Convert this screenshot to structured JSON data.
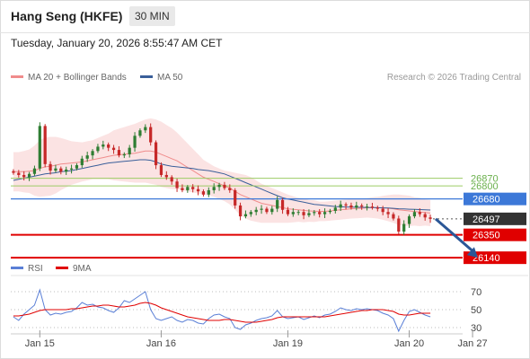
{
  "header": {
    "title": "Hang Seng (HKFE)",
    "interval": "30 MIN",
    "datetime": "Tuesday, January 20, 2026 8:55:47 AM CET",
    "credit": "Research © 2026 Trading Central"
  },
  "legend": {
    "bollinger_label": "MA 20 + Bollinger Bands",
    "bollinger_color": "#f08c8c",
    "ma50_label": "MA 50",
    "ma50_color": "#3a5f9a",
    "rsi_label": "RSI",
    "rsi_color": "#5a7fd6",
    "ma9_label": "9MA",
    "ma9_color": "#e00000"
  },
  "chart_data": [
    {
      "type": "candlestick",
      "ylim": [
        26100,
        27650
      ],
      "x_ticks": [
        "Jan 15",
        "Jan 16",
        "Jan 19",
        "Jan 20",
        "Jan 27"
      ],
      "x_tick_index": [
        5,
        28,
        52,
        75,
        87
      ],
      "n_bars": 80,
      "last_price": 26497,
      "levels": [
        {
          "value": 26870,
          "label": "26870",
          "kind": "resistance-green",
          "color": "#9ccc65"
        },
        {
          "value": 26800,
          "label": "26800",
          "kind": "resistance-green",
          "color": "#9ccc65"
        },
        {
          "value": 26680,
          "label": "26680",
          "kind": "pivot",
          "color": "#3c78d8"
        },
        {
          "value": 26497,
          "label": "26497",
          "kind": "last",
          "color": "#333333"
        },
        {
          "value": 26350,
          "label": "26350",
          "kind": "support",
          "color": "#e00000"
        },
        {
          "value": 26140,
          "label": "26140",
          "kind": "support",
          "color": "#e00000"
        }
      ],
      "forecast_arrow": {
        "from_index": 80,
        "from": 26497,
        "to_index": 88,
        "to": 26140,
        "color": "#2b5797"
      },
      "close": [
        26920,
        26900,
        26880,
        26910,
        26960,
        27350,
        27000,
        26940,
        26960,
        26930,
        26950,
        26960,
        26990,
        27050,
        27080,
        27120,
        27160,
        27180,
        27150,
        27130,
        27080,
        27090,
        27150,
        27260,
        27310,
        27340,
        27200,
        26990,
        26900,
        26880,
        26840,
        26780,
        26760,
        26790,
        26770,
        26750,
        26720,
        26760,
        26790,
        26810,
        26780,
        26760,
        26620,
        26520,
        26540,
        26560,
        26580,
        26590,
        26560,
        26590,
        26670,
        26580,
        26540,
        26560,
        26560,
        26530,
        26550,
        26560,
        26540,
        26560,
        26570,
        26600,
        26630,
        26620,
        26600,
        26620,
        26610,
        26610,
        26600,
        26590,
        26560,
        26540,
        26500,
        26380,
        26450,
        26520,
        26560,
        26540,
        26510,
        26497
      ],
      "ma20": [
        26930,
        26930,
        26930,
        26935,
        26940,
        26960,
        26975,
        26980,
        26990,
        27000,
        27005,
        27010,
        27015,
        27020,
        27030,
        27040,
        27050,
        27060,
        27070,
        27080,
        27085,
        27090,
        27095,
        27100,
        27110,
        27120,
        27120,
        27110,
        27090,
        27070,
        27050,
        27030,
        27000,
        26970,
        26940,
        26910,
        26880,
        26860,
        26840,
        26820,
        26800,
        26780,
        26750,
        26720,
        26700,
        26680,
        26660,
        26640,
        26630,
        26620,
        26610,
        26600,
        26590,
        26585,
        26580,
        26575,
        26570,
        26568,
        26566,
        26566,
        26570,
        26575,
        26580,
        26585,
        26590,
        26592,
        26595,
        26598,
        26600,
        26600,
        26598,
        26595,
        26590,
        26580,
        26575,
        26570,
        26565,
        26560,
        26555,
        26550
      ],
      "bb_width": [
        180,
        180,
        190,
        200,
        230,
        260,
        270,
        270,
        260,
        240,
        220,
        200,
        190,
        180,
        180,
        180,
        190,
        200,
        210,
        230,
        240,
        250,
        260,
        270,
        280,
        290,
        300,
        300,
        300,
        290,
        280,
        260,
        240,
        220,
        200,
        180,
        160,
        150,
        140,
        140,
        140,
        150,
        170,
        190,
        200,
        200,
        190,
        180,
        170,
        160,
        150,
        140,
        130,
        120,
        110,
        110,
        100,
        100,
        90,
        90,
        90,
        90,
        90,
        90,
        90,
        90,
        90,
        90,
        95,
        100,
        110,
        120,
        130,
        140,
        140,
        140,
        130,
        130,
        120,
        120
      ],
      "ma50": [
        26850,
        26860,
        26870,
        26880,
        26890,
        26900,
        26910,
        26915,
        26920,
        26930,
        26935,
        26940,
        26950,
        26960,
        26970,
        26980,
        26990,
        27000,
        27010,
        27015,
        27020,
        27025,
        27030,
        27035,
        27040,
        27040,
        27035,
        27020,
        27000,
        26990,
        26980,
        26975,
        26970,
        26965,
        26960,
        26950,
        26945,
        26940,
        26930,
        26920,
        26910,
        26890,
        26870,
        26850,
        26830,
        26810,
        26790,
        26770,
        26750,
        26730,
        26710,
        26690,
        26680,
        26670,
        26660,
        26650,
        26640,
        26630,
        26625,
        26620,
        26615,
        26610,
        26608,
        26606,
        26605,
        26604,
        26603,
        26602,
        26601,
        26600,
        26598,
        26596,
        26594,
        26590,
        26588,
        26586,
        26584,
        26582,
        26580,
        26578
      ]
    },
    {
      "type": "line",
      "name": "RSI",
      "ylim": [
        20,
        80
      ],
      "y_ticks": [
        70,
        50,
        30
      ],
      "rsi": [
        42,
        38,
        45,
        50,
        55,
        72,
        50,
        44,
        46,
        45,
        47,
        48,
        52,
        58,
        55,
        56,
        53,
        52,
        49,
        47,
        52,
        60,
        58,
        62,
        66,
        70,
        50,
        40,
        38,
        40,
        42,
        38,
        36,
        39,
        38,
        35,
        34,
        40,
        44,
        45,
        42,
        40,
        30,
        28,
        33,
        35,
        38,
        40,
        41,
        43,
        49,
        42,
        40,
        41,
        42,
        39,
        41,
        43,
        41,
        44,
        45,
        48,
        52,
        50,
        49,
        51,
        50,
        51,
        50,
        49,
        46,
        44,
        40,
        26,
        38,
        48,
        50,
        47,
        44,
        42
      ],
      "ma9": [
        43,
        43,
        44,
        45,
        47,
        49,
        50,
        50,
        50,
        50,
        50,
        51,
        51,
        52,
        53,
        54,
        54,
        55,
        55,
        54,
        53,
        53,
        54,
        55,
        57,
        58,
        57,
        55,
        52,
        50,
        48,
        46,
        44,
        42,
        41,
        40,
        39,
        38,
        38,
        38,
        39,
        39,
        38,
        37,
        36,
        36,
        36,
        37,
        38,
        39,
        41,
        42,
        42,
        42,
        42,
        42,
        42,
        42,
        42,
        42,
        43,
        44,
        45,
        46,
        47,
        48,
        49,
        49,
        50,
        50,
        50,
        49,
        48,
        45,
        44,
        44,
        45,
        46,
        46,
        46
      ]
    }
  ]
}
